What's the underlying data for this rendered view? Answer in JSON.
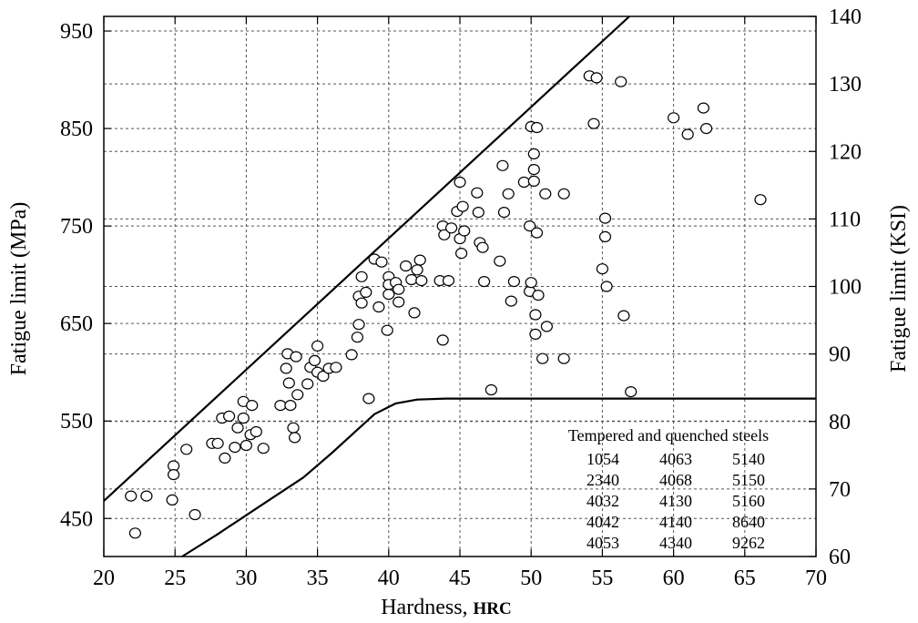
{
  "chart_data": {
    "type": "scatter",
    "xlabel": "Hardness,",
    "xlabel_unit": "HRC",
    "ylabel_left": "Fatigue limit (MPa)",
    "ylabel_right": "Fatigue limit (KSI)",
    "xlim": [
      20,
      70
    ],
    "ylim_left": [
      411,
      965
    ],
    "ylim_right": [
      60,
      140
    ],
    "x_ticks": [
      20,
      25,
      30,
      35,
      40,
      45,
      50,
      55,
      60,
      65,
      70
    ],
    "y_ticks_left": [
      450,
      550,
      650,
      750,
      850,
      950
    ],
    "y_ticks_right": [
      60,
      70,
      80,
      90,
      100,
      110,
      120,
      130,
      140
    ],
    "grid": true,
    "legend": {
      "title": "Tempered and quenched steels",
      "rows": [
        [
          "1054",
          "4063",
          "5140"
        ],
        [
          "2340",
          "4068",
          "5150"
        ],
        [
          "4032",
          "4130",
          "5160"
        ],
        [
          "4042",
          "4140",
          "8640"
        ],
        [
          "4053",
          "4340",
          "9262"
        ]
      ],
      "placement": "bottom-right"
    },
    "bounds": {
      "upper": [
        [
          20,
          468
        ],
        [
          56.9,
          965
        ]
      ],
      "lower": [
        [
          25.5,
          411
        ],
        [
          28,
          434
        ],
        [
          31,
          463
        ],
        [
          34,
          492
        ],
        [
          36,
          517
        ],
        [
          37.5,
          537
        ],
        [
          39,
          557
        ],
        [
          40.5,
          568
        ],
        [
          42,
          572
        ],
        [
          44,
          573
        ],
        [
          70,
          573
        ]
      ]
    },
    "points": [
      [
        21.9,
        473
      ],
      [
        22.2,
        435
      ],
      [
        23.0,
        473
      ],
      [
        24.8,
        469
      ],
      [
        24.9,
        504
      ],
      [
        24.9,
        495
      ],
      [
        25.8,
        521
      ],
      [
        26.4,
        454
      ],
      [
        27.6,
        527
      ],
      [
        28.0,
        527
      ],
      [
        28.3,
        553
      ],
      [
        28.5,
        512
      ],
      [
        28.8,
        555
      ],
      [
        29.2,
        523
      ],
      [
        29.4,
        543
      ],
      [
        29.8,
        553
      ],
      [
        29.8,
        570
      ],
      [
        30.0,
        525
      ],
      [
        30.3,
        536
      ],
      [
        30.4,
        566
      ],
      [
        30.7,
        539
      ],
      [
        31.2,
        522
      ],
      [
        32.4,
        566
      ],
      [
        32.8,
        604
      ],
      [
        32.9,
        619
      ],
      [
        33.0,
        589
      ],
      [
        33.1,
        566
      ],
      [
        33.3,
        543
      ],
      [
        33.4,
        533
      ],
      [
        33.5,
        616
      ],
      [
        33.6,
        577
      ],
      [
        34.3,
        588
      ],
      [
        34.5,
        605
      ],
      [
        34.8,
        612
      ],
      [
        35.0,
        627
      ],
      [
        35.0,
        600
      ],
      [
        35.4,
        596
      ],
      [
        35.8,
        604
      ],
      [
        36.3,
        605
      ],
      [
        37.4,
        618
      ],
      [
        37.8,
        636
      ],
      [
        37.9,
        649
      ],
      [
        37.9,
        678
      ],
      [
        38.1,
        671
      ],
      [
        38.1,
        698
      ],
      [
        38.4,
        682
      ],
      [
        38.6,
        573
      ],
      [
        39.0,
        716
      ],
      [
        39.3,
        667
      ],
      [
        39.5,
        713
      ],
      [
        39.9,
        643
      ],
      [
        40.0,
        698
      ],
      [
        40.0,
        690
      ],
      [
        40.0,
        680
      ],
      [
        40.5,
        692
      ],
      [
        40.7,
        685
      ],
      [
        40.7,
        672
      ],
      [
        41.2,
        709
      ],
      [
        41.6,
        695
      ],
      [
        41.8,
        661
      ],
      [
        42.0,
        705
      ],
      [
        42.2,
        715
      ],
      [
        42.3,
        694
      ],
      [
        43.6,
        694
      ],
      [
        43.8,
        750
      ],
      [
        43.8,
        633
      ],
      [
        43.9,
        741
      ],
      [
        44.2,
        694
      ],
      [
        44.4,
        748
      ],
      [
        44.8,
        765
      ],
      [
        45.0,
        795
      ],
      [
        45.0,
        737
      ],
      [
        45.1,
        722
      ],
      [
        45.2,
        770
      ],
      [
        45.3,
        745
      ],
      [
        46.2,
        784
      ],
      [
        46.3,
        764
      ],
      [
        46.4,
        733
      ],
      [
        46.6,
        728
      ],
      [
        46.7,
        693
      ],
      [
        47.2,
        582
      ],
      [
        47.8,
        714
      ],
      [
        48.0,
        812
      ],
      [
        48.1,
        764
      ],
      [
        48.4,
        783
      ],
      [
        48.6,
        673
      ],
      [
        48.8,
        693
      ],
      [
        49.5,
        795
      ],
      [
        49.9,
        750
      ],
      [
        49.9,
        683
      ],
      [
        50.0,
        692
      ],
      [
        50.0,
        852
      ],
      [
        50.2,
        824
      ],
      [
        50.2,
        808
      ],
      [
        50.2,
        796
      ],
      [
        50.3,
        659
      ],
      [
        50.3,
        639
      ],
      [
        50.4,
        851
      ],
      [
        50.4,
        743
      ],
      [
        50.5,
        679
      ],
      [
        50.8,
        614
      ],
      [
        51.0,
        783
      ],
      [
        51.1,
        647
      ],
      [
        52.3,
        783
      ],
      [
        52.3,
        614
      ],
      [
        54.1,
        904
      ],
      [
        54.4,
        855
      ],
      [
        54.6,
        902
      ],
      [
        55.0,
        706
      ],
      [
        55.2,
        758
      ],
      [
        55.2,
        739
      ],
      [
        55.3,
        688
      ],
      [
        56.3,
        898
      ],
      [
        56.5,
        658
      ],
      [
        57.0,
        580
      ],
      [
        60.0,
        861
      ],
      [
        61.0,
        844
      ],
      [
        62.1,
        871
      ],
      [
        62.3,
        850
      ],
      [
        66.1,
        777
      ]
    ]
  }
}
